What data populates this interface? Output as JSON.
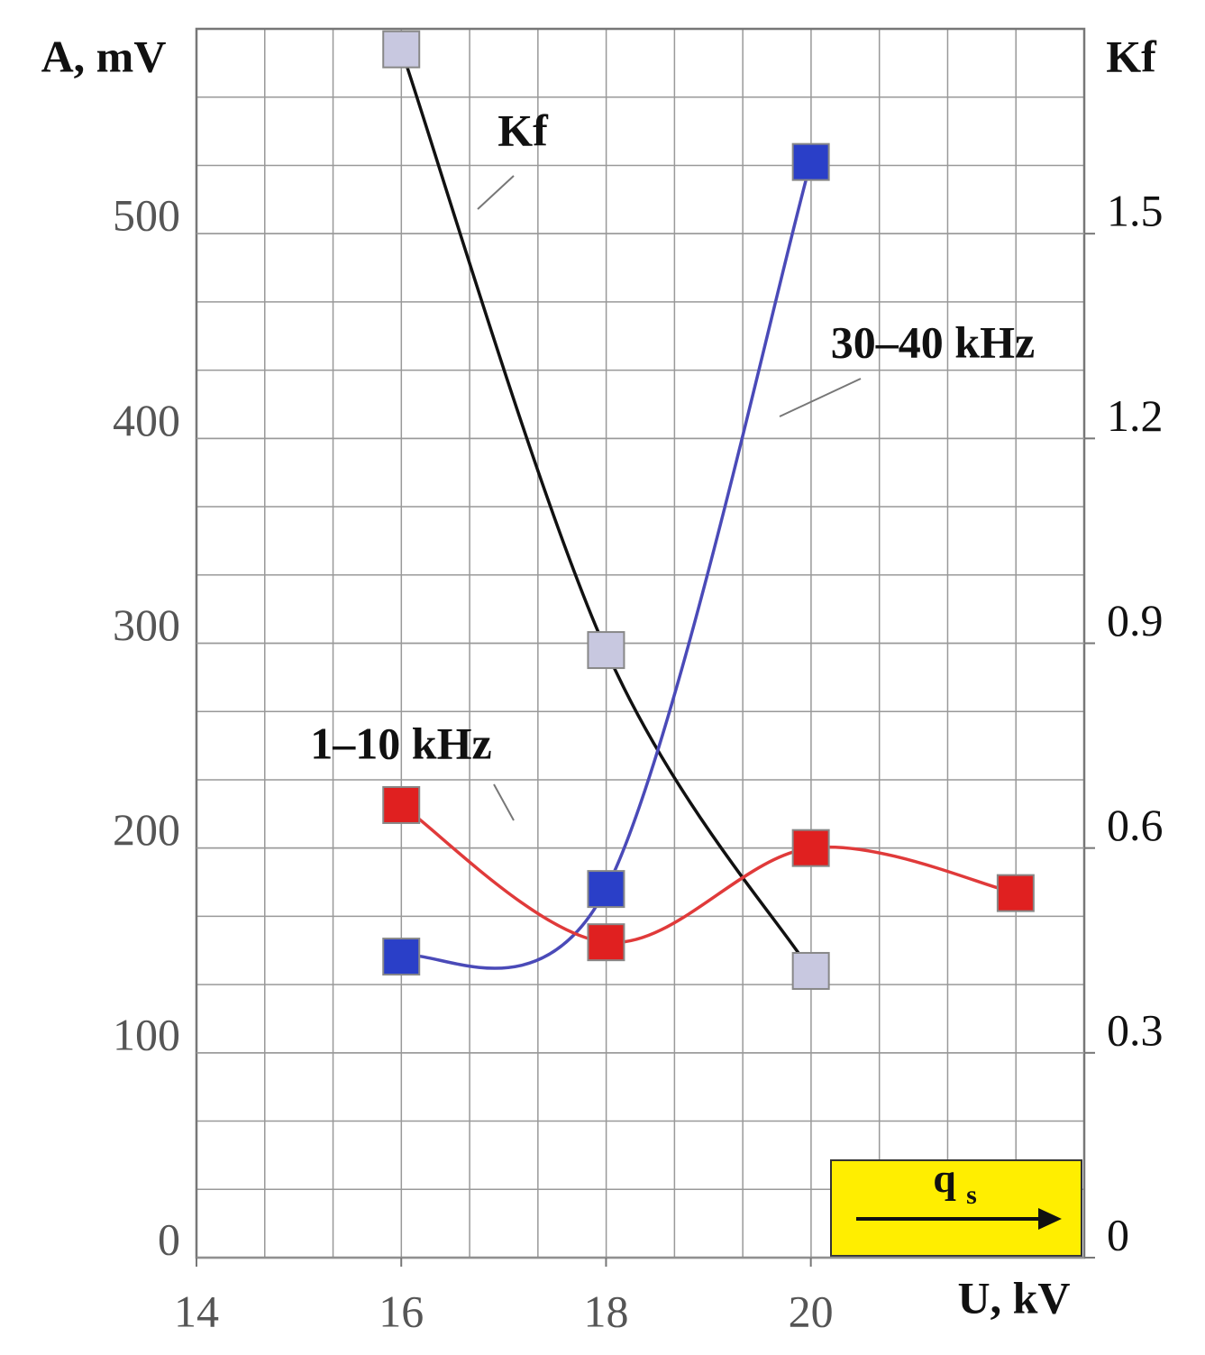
{
  "chart_data": {
    "type": "line",
    "y_label": "A, mV",
    "y2_label": "Kf",
    "x_label": "U, kV",
    "xlim": [
      14,
      22.67
    ],
    "xticks": [
      14,
      16,
      18,
      20
    ],
    "ylim": [
      0,
      600
    ],
    "yticks": [
      0,
      100,
      200,
      300,
      400,
      500
    ],
    "y2lim": [
      0,
      1.8
    ],
    "y2ticks": [
      0,
      0.3,
      0.6,
      0.9,
      1.2,
      1.5
    ],
    "grid": true,
    "series": [
      {
        "name": "Kf",
        "axis": "y2",
        "color": "#111111",
        "marker_color": "#c8c8e0",
        "x": [
          16,
          18,
          20
        ],
        "values": [
          1.77,
          0.89,
          0.42
        ]
      },
      {
        "name": "30–40 kHz",
        "color": "#4a4ab8",
        "marker_color": "#2a3fc8",
        "x": [
          16,
          18,
          20
        ],
        "values": [
          147,
          180,
          535
        ]
      },
      {
        "name": "1–10 kHz",
        "color": "#e03a3a",
        "marker_color": "#e02020",
        "x": [
          16,
          18,
          20,
          22
        ],
        "values": [
          221,
          154,
          200,
          178
        ]
      }
    ],
    "box_label": "q",
    "box_label_sub": "s"
  }
}
